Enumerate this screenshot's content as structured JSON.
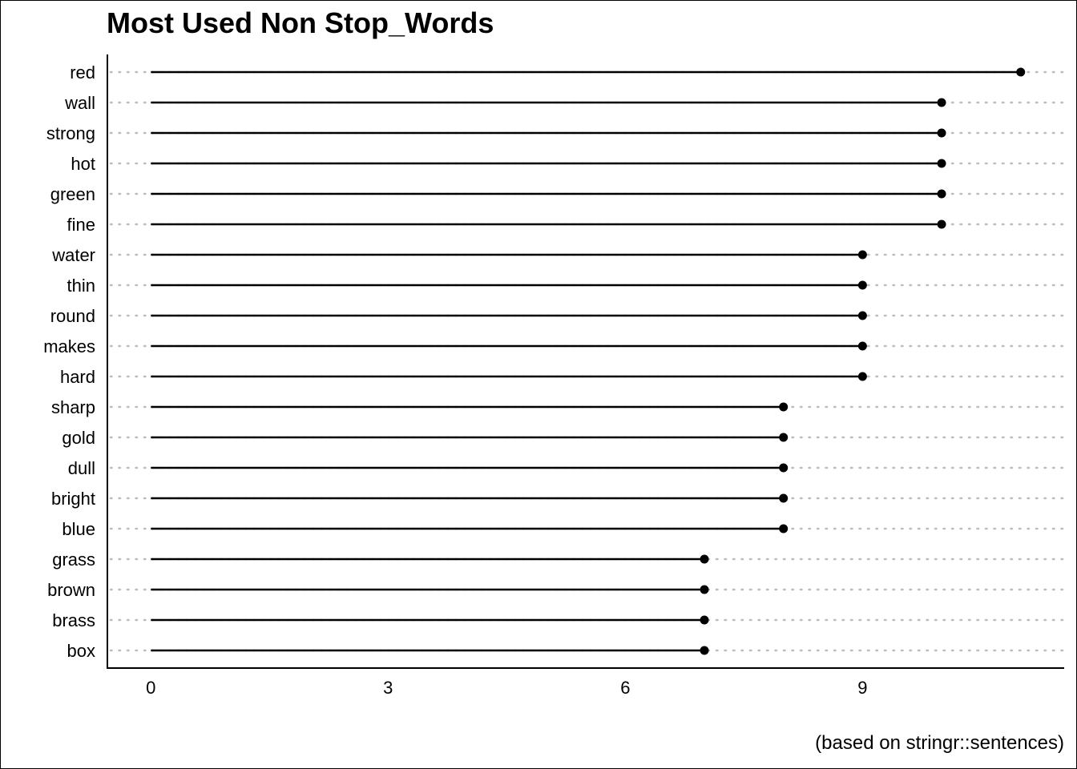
{
  "chart_data": {
    "type": "lollipop",
    "title": "Most Used Non Stop_Words",
    "caption": "(based on stringr::sentences)",
    "xlabel": "",
    "ylabel": "",
    "categories": [
      "red",
      "wall",
      "strong",
      "hot",
      "green",
      "fine",
      "water",
      "thin",
      "round",
      "makes",
      "hard",
      "sharp",
      "gold",
      "dull",
      "bright",
      "blue",
      "grass",
      "brown",
      "brass",
      "box"
    ],
    "values": [
      11,
      10,
      10,
      10,
      10,
      10,
      9,
      9,
      9,
      9,
      9,
      8,
      8,
      8,
      8,
      8,
      7,
      7,
      7,
      7
    ],
    "x_ticks": [
      "0",
      "3",
      "6",
      "9"
    ],
    "xlim": [
      -0.55,
      11.55
    ],
    "grid": "dotted horizontal guides per category",
    "colors": {
      "stem": "#000000",
      "point": "#000000",
      "guide": "#bdbdbd"
    }
  }
}
